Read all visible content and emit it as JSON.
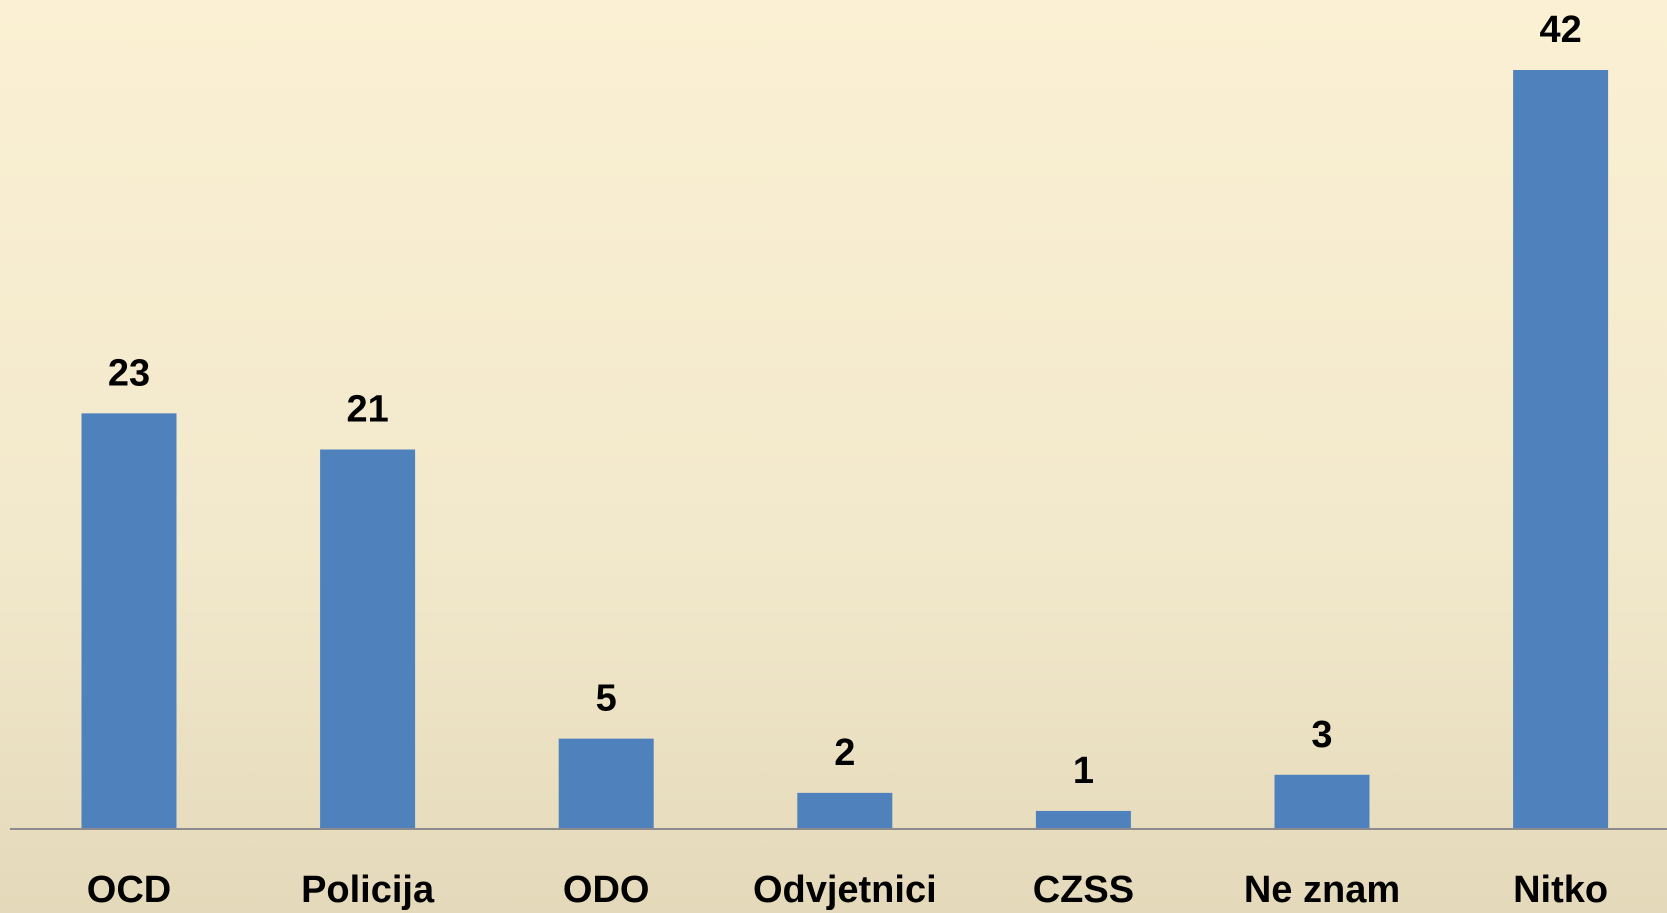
{
  "chart_data": {
    "type": "bar",
    "categories": [
      "OCD",
      "Policija",
      "ODO",
      "Odvjetnici",
      "CZSS",
      "Ne znam",
      "Nitko"
    ],
    "values": [
      23,
      21,
      5,
      2,
      1,
      3,
      42
    ],
    "color": "#4f81bd",
    "ylim": [
      0,
      42
    ]
  }
}
